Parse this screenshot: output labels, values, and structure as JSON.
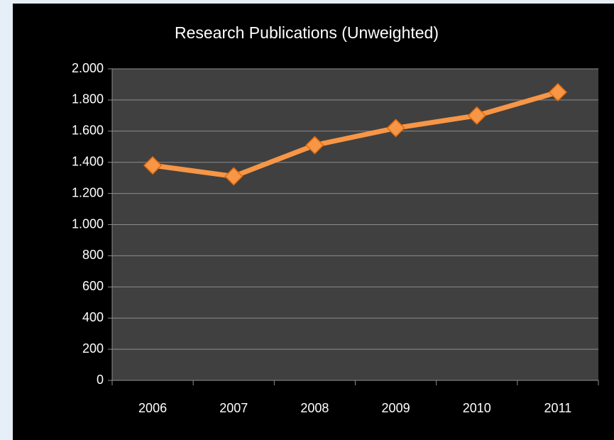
{
  "chart_data": {
    "type": "line",
    "title": "Research Publications (Unweighted)",
    "categories": [
      "2006",
      "2007",
      "2008",
      "2009",
      "2010",
      "2011"
    ],
    "series": [
      {
        "name": "Research Publications",
        "color": "#f79646",
        "values": [
          1380,
          1310,
          1510,
          1620,
          1700,
          1850
        ]
      }
    ],
    "ylim": [
      0,
      2000
    ],
    "yticks": [
      0,
      200,
      400,
      600,
      800,
      {
        "value": 1000,
        "label": "1.000"
      },
      {
        "value": 1200,
        "label": "1.200"
      },
      {
        "value": 1400,
        "label": "1.400"
      },
      {
        "value": 1600,
        "label": "1.600"
      },
      {
        "value": 1800,
        "label": "1.800"
      },
      {
        "value": 2000,
        "label": "2.000"
      }
    ],
    "grid": true
  }
}
